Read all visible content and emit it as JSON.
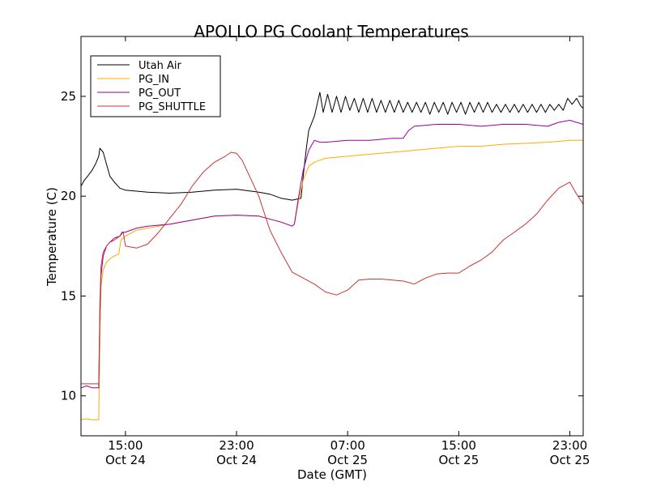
{
  "chart_data": {
    "type": "line",
    "title": "APOLLO PG Coolant Temperatures",
    "xlabel": "Date (GMT)",
    "ylabel": "Temperature (C)",
    "xlim": [
      0,
      45.2
    ],
    "ylim": [
      8,
      28
    ],
    "grid": false,
    "legend_position": "top-left",
    "x_unit_note": "hours",
    "x_ticks": [
      {
        "x": 4.0,
        "line1": "15:00",
        "line2": "Oct 24"
      },
      {
        "x": 14.0,
        "line1": "23:00",
        "line2": "Oct 24"
      },
      {
        "x": 24.0,
        "line1": "07:00",
        "line2": "Oct 25"
      },
      {
        "x": 34.0,
        "line1": "15:00",
        "line2": "Oct 25"
      },
      {
        "x": 44.0,
        "line1": "23:00",
        "line2": "Oct 25"
      }
    ],
    "y_ticks": [
      {
        "y": 10,
        "label": "10"
      },
      {
        "y": 15,
        "label": "15"
      },
      {
        "y": 20,
        "label": "20"
      },
      {
        "y": 25,
        "label": "25"
      }
    ],
    "series": [
      {
        "name": "Utah Air",
        "color": "#000000",
        "x": [
          0,
          0.3,
          0.6,
          1.0,
          1.3,
          1.6,
          1.7,
          2.0,
          2.3,
          2.6,
          3.0,
          3.5,
          4.0,
          6.0,
          8.0,
          10.0,
          12.0,
          14.0,
          16.0,
          17.0,
          18.0,
          18.5,
          19.0,
          19.8,
          20.0,
          20.3,
          20.5,
          21.0,
          21.5,
          21.8,
          22.2,
          22.6,
          23.0,
          23.4,
          23.8,
          24.2,
          24.6,
          25.0,
          25.4,
          25.8,
          26.2,
          26.6,
          27.0,
          27.4,
          27.8,
          28.2,
          28.6,
          29.0,
          29.4,
          29.8,
          30.2,
          30.6,
          31.0,
          31.4,
          31.8,
          32.2,
          32.6,
          33.0,
          33.4,
          33.8,
          34.2,
          34.6,
          35.0,
          35.4,
          35.8,
          36.2,
          36.6,
          37.0,
          37.4,
          37.8,
          38.2,
          38.6,
          39.0,
          39.4,
          39.8,
          40.2,
          40.6,
          41.0,
          41.4,
          41.8,
          42.2,
          42.6,
          43.0,
          43.4,
          43.8,
          44.2,
          44.6,
          45.0,
          45.2
        ],
        "y": [
          20.5,
          20.8,
          21.0,
          21.3,
          21.6,
          22.0,
          22.4,
          22.2,
          21.6,
          21.0,
          20.7,
          20.4,
          20.3,
          20.2,
          20.15,
          20.2,
          20.3,
          20.35,
          20.2,
          20.1,
          19.9,
          19.85,
          19.8,
          19.9,
          21.0,
          22.5,
          23.3,
          24.0,
          25.2,
          24.2,
          25.1,
          24.2,
          25.0,
          24.2,
          25.0,
          24.3,
          24.9,
          24.2,
          24.9,
          24.2,
          24.9,
          24.2,
          24.8,
          24.2,
          24.8,
          24.2,
          24.8,
          24.2,
          24.7,
          24.2,
          24.7,
          24.2,
          24.7,
          24.1,
          24.7,
          24.2,
          24.7,
          24.1,
          24.7,
          24.2,
          24.7,
          24.1,
          24.7,
          24.2,
          24.7,
          24.2,
          24.7,
          24.2,
          24.6,
          24.2,
          24.6,
          24.2,
          24.6,
          24.2,
          24.6,
          24.2,
          24.6,
          24.2,
          24.6,
          24.2,
          24.6,
          24.3,
          24.6,
          24.3,
          24.9,
          24.6,
          24.9,
          24.5,
          24.4
        ]
      },
      {
        "name": "PG_IN",
        "color": "#ffaa00",
        "x": [
          0,
          0.5,
          1.0,
          1.6,
          1.7,
          1.8,
          2.0,
          2.3,
          2.7,
          3.0,
          3.4,
          3.6,
          4.0,
          5.0,
          6.0,
          8.0,
          10.0,
          12.0,
          14.0,
          16.0,
          18.0,
          18.5,
          19.0,
          19.2,
          19.6,
          20.0,
          20.5,
          21.0,
          21.5,
          22.0,
          24.0,
          26.0,
          28.0,
          30.0,
          32.0,
          34.0,
          36.0,
          38.0,
          40.0,
          42.0,
          44.0,
          45.2
        ],
        "y": [
          8.8,
          8.85,
          8.8,
          8.8,
          13.0,
          15.5,
          16.3,
          16.7,
          16.9,
          17.0,
          17.1,
          17.8,
          18.0,
          18.3,
          18.4,
          18.6,
          18.8,
          19.0,
          19.05,
          19.0,
          18.7,
          18.6,
          18.5,
          18.6,
          19.8,
          20.8,
          21.5,
          21.7,
          21.8,
          21.9,
          22.0,
          22.1,
          22.2,
          22.3,
          22.4,
          22.5,
          22.5,
          22.6,
          22.65,
          22.7,
          22.8,
          22.8
        ]
      },
      {
        "name": "PG_OUT",
        "color": "#990099",
        "x": [
          0,
          0.5,
          1.0,
          1.6,
          1.7,
          1.8,
          2.0,
          2.3,
          2.6,
          3.0,
          3.5,
          3.7,
          4.0,
          5.0,
          6.0,
          8.0,
          10.0,
          12.0,
          14.0,
          16.0,
          18.0,
          18.5,
          19.0,
          19.2,
          19.6,
          20.0,
          20.5,
          21.0,
          21.5,
          22.0,
          24.0,
          26.0,
          28.0,
          29.0,
          29.5,
          30.0,
          32.0,
          34.0,
          36.0,
          38.0,
          40.0,
          42.0,
          43.0,
          44.0,
          45.2
        ],
        "y": [
          10.4,
          10.5,
          10.4,
          10.4,
          14.0,
          16.0,
          17.0,
          17.5,
          17.7,
          17.9,
          18.0,
          18.2,
          18.2,
          18.4,
          18.5,
          18.6,
          18.8,
          19.0,
          19.05,
          19.0,
          18.7,
          18.6,
          18.5,
          18.6,
          20.0,
          21.3,
          22.3,
          22.8,
          22.7,
          22.7,
          22.8,
          22.8,
          22.9,
          22.9,
          23.3,
          23.5,
          23.6,
          23.6,
          23.5,
          23.6,
          23.6,
          23.5,
          23.7,
          23.8,
          23.6
        ]
      },
      {
        "name": "PG_SHUTTLE",
        "color": "#cc3333",
        "x": [
          0,
          0.5,
          1.0,
          1.6,
          1.7,
          1.8,
          2.0,
          2.3,
          2.6,
          3.0,
          3.5,
          3.8,
          4.0,
          5.0,
          6.0,
          7.0,
          8.0,
          9.0,
          10.0,
          11.0,
          12.0,
          13.0,
          13.5,
          14.0,
          14.5,
          15.0,
          16.0,
          17.0,
          18.0,
          19.0,
          20.0,
          21.0,
          22.0,
          23.0,
          24.0,
          25.0,
          26.0,
          27.0,
          28.0,
          29.0,
          30.0,
          31.0,
          32.0,
          33.0,
          34.0,
          35.0,
          36.0,
          37.0,
          38.0,
          39.0,
          40.0,
          41.0,
          42.0,
          43.0,
          44.0,
          44.5,
          45.2
        ],
        "y": [
          10.6,
          10.6,
          10.6,
          10.6,
          14.5,
          16.5,
          17.2,
          17.5,
          17.7,
          17.8,
          18.0,
          18.2,
          17.5,
          17.4,
          17.6,
          18.2,
          18.9,
          19.6,
          20.5,
          21.2,
          21.7,
          22.0,
          22.2,
          22.15,
          21.8,
          21.2,
          20.0,
          18.3,
          17.2,
          16.2,
          15.9,
          15.6,
          15.2,
          15.05,
          15.3,
          15.8,
          15.85,
          15.85,
          15.8,
          15.75,
          15.6,
          15.9,
          16.1,
          16.15,
          16.15,
          16.5,
          16.8,
          17.2,
          17.8,
          18.2,
          18.6,
          19.1,
          19.8,
          20.4,
          20.7,
          20.2,
          19.6
        ]
      }
    ]
  }
}
